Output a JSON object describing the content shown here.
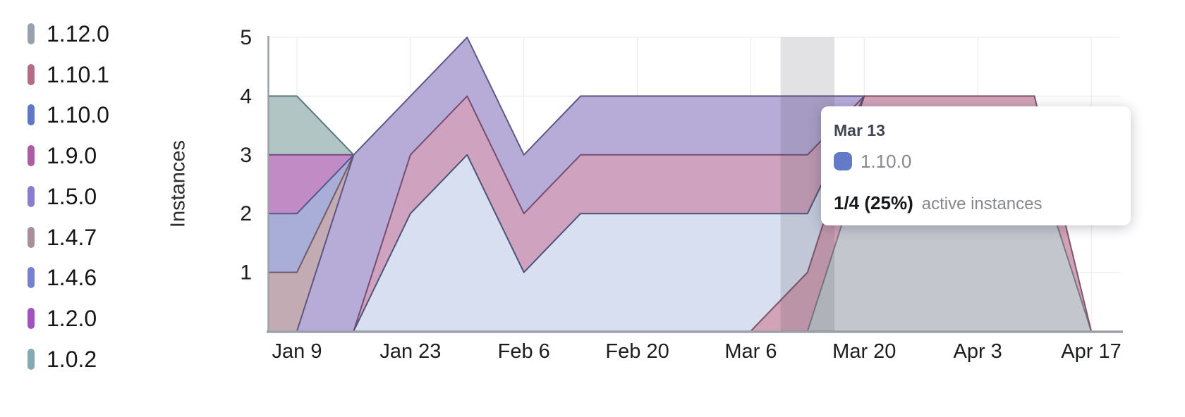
{
  "legend": {
    "items": [
      {
        "label": "1.12.0",
        "color": "#98a1ae"
      },
      {
        "label": "1.10.1",
        "color": "#b56b87"
      },
      {
        "label": "1.10.0",
        "color": "#5f78c6"
      },
      {
        "label": "1.9.0",
        "color": "#af5ba3"
      },
      {
        "label": "1.5.0",
        "color": "#8a7cd1"
      },
      {
        "label": "1.4.7",
        "color": "#a98f9e"
      },
      {
        "label": "1.4.6",
        "color": "#7681d0"
      },
      {
        "label": "1.2.0",
        "color": "#a053bc"
      },
      {
        "label": "1.0.2",
        "color": "#83abb1"
      }
    ]
  },
  "chart_data": {
    "type": "area",
    "stacked": true,
    "title": "",
    "xlabel": "",
    "ylabel": "Instances",
    "ylim": [
      0,
      5
    ],
    "grid": true,
    "legend_position": "left",
    "x": [
      "Jan 9",
      "Jan 16",
      "Jan 23",
      "Jan 30",
      "Feb 6",
      "Feb 13",
      "Feb 20",
      "Feb 27",
      "Mar 6",
      "Mar 13",
      "Mar 20",
      "Mar 27",
      "Apr 3",
      "Apr 10",
      "Apr 17"
    ],
    "x_tick_labels": [
      "Jan 9",
      "Jan 23",
      "Feb 6",
      "Feb 20",
      "Mar 6",
      "Mar 20",
      "Apr 3",
      "Apr 17"
    ],
    "y_ticks": [
      1,
      2,
      3,
      4,
      5
    ],
    "stack_order_bottom_to_top": [
      "1.12.0",
      "1.10.1",
      "1.10.0",
      "1.9.0",
      "1.5.0",
      "1.4.7",
      "1.4.6",
      "1.2.0",
      "1.0.2"
    ],
    "series": [
      {
        "name": "1.12.0",
        "fill": "#c3c6cd",
        "stroke": "#6f747f",
        "values": [
          0,
          0,
          0,
          0,
          0,
          0,
          0,
          0,
          0,
          0,
          3,
          3,
          3,
          3,
          0
        ]
      },
      {
        "name": "1.10.1",
        "fill": "#d2a2b7",
        "stroke": "#7a4a60",
        "values": [
          0,
          0,
          0,
          0,
          0,
          0,
          0,
          0,
          0,
          1,
          1,
          1,
          1,
          1,
          0
        ]
      },
      {
        "name": "1.10.0",
        "fill": "#d8dff0",
        "stroke": "#3e4a72",
        "values": [
          0,
          0,
          2,
          3,
          1,
          2,
          2,
          2,
          2,
          1,
          0,
          0,
          0,
          0,
          0
        ]
      },
      {
        "name": "1.9.0",
        "fill": "#cfa3bf",
        "stroke": "#714368",
        "values": [
          0,
          0,
          1,
          1,
          1,
          1,
          1,
          1,
          1,
          1,
          0,
          0,
          0,
          0,
          0
        ]
      },
      {
        "name": "1.5.0",
        "fill": "#b7abd8",
        "stroke": "#544d7c",
        "values": [
          0,
          3,
          1,
          1,
          1,
          1,
          1,
          1,
          1,
          1,
          0,
          0,
          0,
          0,
          0
        ]
      },
      {
        "name": "1.4.7",
        "fill": "#c3abb3",
        "stroke": "#6d525c",
        "values": [
          1,
          0,
          0,
          0,
          0,
          0,
          0,
          0,
          0,
          0,
          0,
          0,
          0,
          0,
          0
        ]
      },
      {
        "name": "1.4.6",
        "fill": "#a8aed8",
        "stroke": "#4a4f8a",
        "values": [
          1,
          0,
          0,
          0,
          0,
          0,
          0,
          0,
          0,
          0,
          0,
          0,
          0,
          0,
          0
        ]
      },
      {
        "name": "1.2.0",
        "fill": "#c18bc6",
        "stroke": "#713c80",
        "values": [
          1,
          0,
          0,
          0,
          0,
          0,
          0,
          0,
          0,
          0,
          0,
          0,
          0,
          0,
          0
        ]
      },
      {
        "name": "1.0.2",
        "fill": "#b1c5c5",
        "stroke": "#4e7173",
        "values": [
          1,
          0,
          0,
          0,
          0,
          0,
          0,
          0,
          0,
          0,
          0,
          0,
          0,
          0,
          0
        ]
      }
    ],
    "hover": {
      "x_index": 9,
      "x_label": "Mar 13"
    }
  },
  "tooltip": {
    "date": "Mar 13",
    "series_name": "1.10.0",
    "swatch_color": "#637bc7",
    "value": "1/4 (25%)",
    "suffix": "active instances"
  }
}
